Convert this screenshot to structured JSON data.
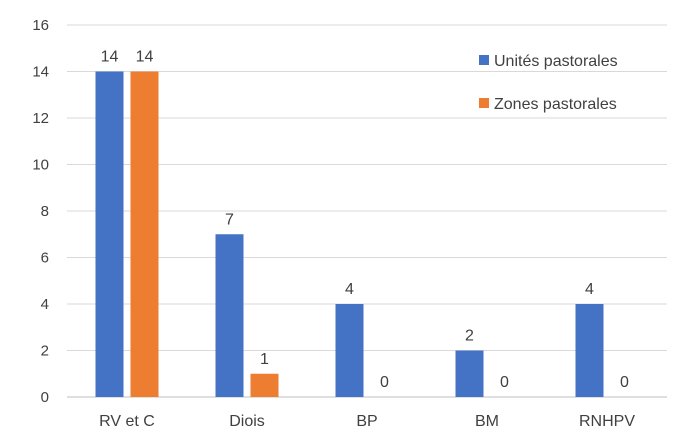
{
  "chart_data": {
    "type": "bar",
    "categories": [
      "RV et C",
      "Diois",
      "BP",
      "BM",
      "RNHPV"
    ],
    "series": [
      {
        "name": "Unités pastorales",
        "values": [
          14,
          7,
          4,
          2,
          4
        ],
        "color": "#4472C4",
        "show_zero_label": false
      },
      {
        "name": "Zones pastorales",
        "values": [
          14,
          1,
          0,
          0,
          0
        ],
        "color": "#ED7D31",
        "show_zero_label": true
      }
    ],
    "ylim": [
      0,
      16
    ],
    "yticks": [
      0,
      2,
      4,
      6,
      8,
      10,
      12,
      14,
      16
    ],
    "grid": true,
    "legend_position": "top-right",
    "data_labels": true,
    "title": "",
    "xlabel": "",
    "ylabel": ""
  }
}
